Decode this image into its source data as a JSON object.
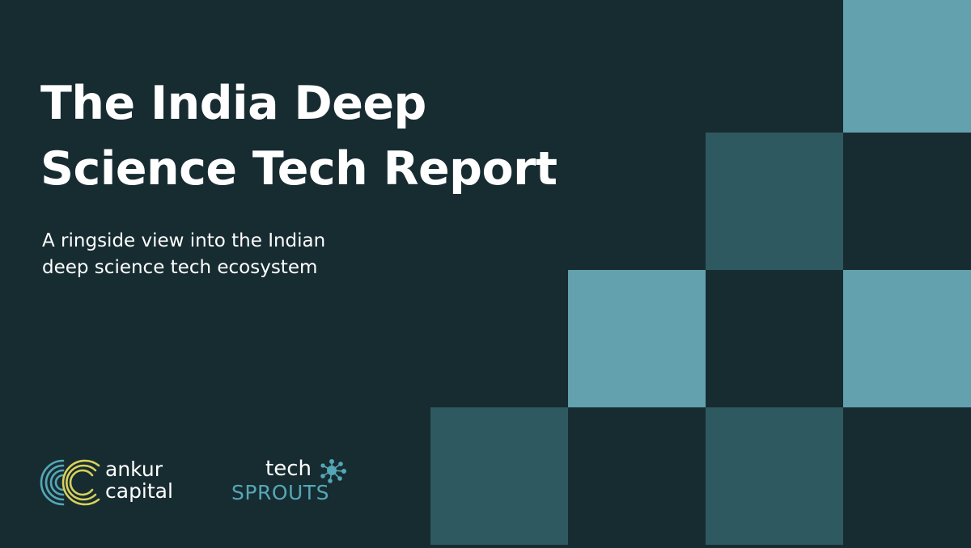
{
  "title": {
    "line1": "The India Deep",
    "line2": "Science Tech Report"
  },
  "subtitle": {
    "line1": "A ringside view into the Indian",
    "line2": "deep science tech ecosystem"
  },
  "logos": {
    "ankur": {
      "word1": "ankur",
      "word2": "capital",
      "icon": "ankur-capital-rings-icon"
    },
    "techsprouts": {
      "word1": "tech",
      "word2": "SPROUTS",
      "icon": "molecule-icon"
    }
  },
  "colors": {
    "background": "#172c31",
    "tile_light": "#63a1ae",
    "tile_mid": "#2f5961",
    "sprouts_blue": "#55a7b7",
    "ring_yellow": "#d9d15a",
    "ring_blue": "#55a7b7"
  }
}
